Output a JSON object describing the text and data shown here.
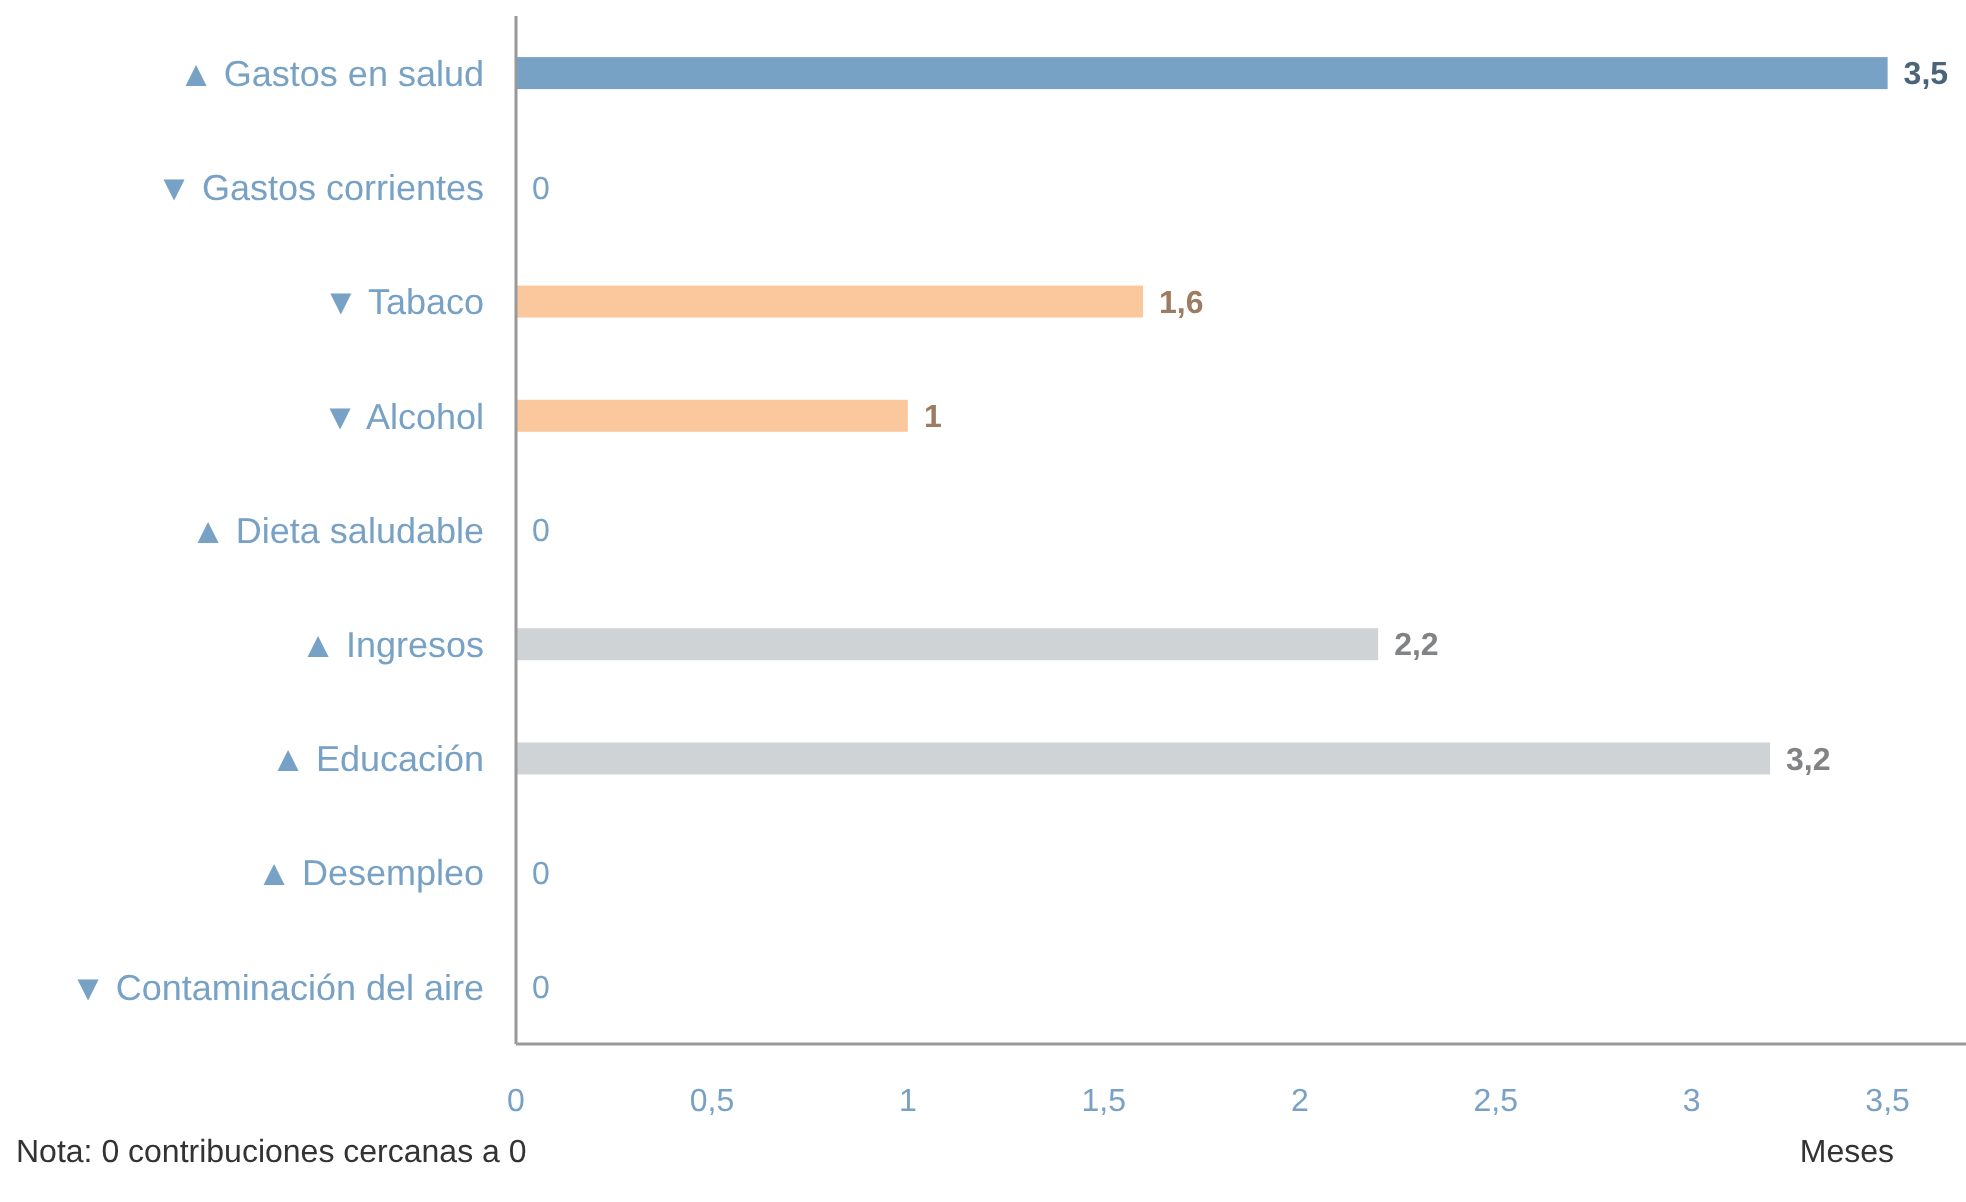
{
  "chart_data": {
    "type": "bar",
    "orientation": "horizontal",
    "categories": [
      "▲ Gastos en salud",
      "▼ Gastos corrientes",
      "▼ Tabaco",
      "▼ Alcohol",
      "▲ Dieta saludable",
      "▲ Ingresos",
      "▲ Educación",
      "▲ Desempleo",
      "▼ Contaminación del aire"
    ],
    "values": [
      3.5,
      0,
      1.6,
      1,
      0,
      2.2,
      3.2,
      0,
      0
    ],
    "colors": [
      "#77a1c5",
      "#77a1c5",
      "#fbc89e",
      "#fbc89e",
      "#77a1c5",
      "#d0d3d6",
      "#d0d3d6",
      "#77a1c5",
      "#77a1c5"
    ],
    "value_labels": [
      "3,5",
      "0",
      "1,6",
      "1",
      "0",
      "2,2",
      "3,2",
      "0",
      "0"
    ],
    "xlim": [
      0,
      3.7
    ],
    "xticks": [
      0,
      {
        "value": 0.5,
        "label": "0,5"
      },
      1,
      {
        "value": 1.5,
        "label": "1,5"
      },
      2,
      {
        "value": 2.5,
        "label": "2,5"
      },
      3,
      {
        "value": 3.5,
        "label": "3,5"
      }
    ],
    "xlabel": "Meses",
    "annotations": [
      "Nota: 0 contribuciones cercanas a 0"
    ],
    "grid": false,
    "legend": false
  }
}
